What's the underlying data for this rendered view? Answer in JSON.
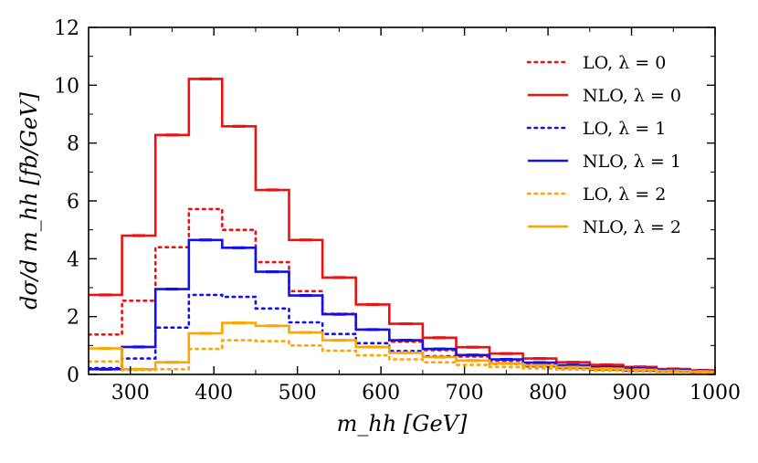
{
  "chart_data": {
    "type": "line",
    "step": true,
    "xlabel": "m_hh [GeV]",
    "ylabel": "dσ/d m_hh [fb/GeV]",
    "xlim": [
      250,
      1000
    ],
    "ylim": [
      0,
      12
    ],
    "xticks": [
      300,
      400,
      500,
      600,
      700,
      800,
      900,
      1000
    ],
    "yticks": [
      0,
      2,
      4,
      6,
      8,
      10,
      12
    ],
    "grid": false,
    "legend_position": "top-right",
    "bin_edges": [
      250,
      290,
      330,
      370,
      410,
      450,
      490,
      530,
      570,
      610,
      650,
      690,
      730,
      770,
      810,
      850,
      890,
      930,
      970,
      1000
    ],
    "series": [
      {
        "name": "LO, λ = 0",
        "color": "#ee1111",
        "style": "dotted",
        "values": [
          1.38,
          2.55,
          4.4,
          5.72,
          5.0,
          3.88,
          2.88,
          2.1,
          1.55,
          1.13,
          0.84,
          0.62,
          0.47,
          0.35,
          0.27,
          0.21,
          0.16,
          0.12,
          0.09
        ]
      },
      {
        "name": "NLO, λ = 0",
        "color": "#ee1111",
        "style": "solid",
        "values": [
          2.75,
          4.8,
          8.28,
          10.22,
          8.58,
          6.38,
          4.65,
          3.35,
          2.42,
          1.75,
          1.27,
          0.94,
          0.72,
          0.55,
          0.42,
          0.33,
          0.26,
          0.19,
          0.14
        ]
      },
      {
        "name": "LO, λ = 1",
        "color": "#1111ee",
        "style": "dotted",
        "values": [
          0.22,
          0.55,
          1.62,
          2.75,
          2.68,
          2.28,
          1.8,
          1.4,
          1.08,
          0.81,
          0.63,
          0.48,
          0.37,
          0.28,
          0.22,
          0.17,
          0.13,
          0.1,
          0.08
        ]
      },
      {
        "name": "NLO, λ = 1",
        "color": "#1111ee",
        "style": "solid",
        "values": [
          0.18,
          0.95,
          2.95,
          4.65,
          4.38,
          3.55,
          2.73,
          2.08,
          1.55,
          1.18,
          0.88,
          0.67,
          0.52,
          0.41,
          0.32,
          0.25,
          0.2,
          0.15,
          0.12
        ]
      },
      {
        "name": "LO, λ = 2",
        "color": "#ffa500",
        "style": "dotted",
        "values": [
          0.45,
          0.15,
          0.18,
          0.88,
          1.18,
          1.15,
          1.0,
          0.82,
          0.66,
          0.52,
          0.42,
          0.33,
          0.26,
          0.21,
          0.17,
          0.13,
          0.1,
          0.08,
          0.06
        ]
      },
      {
        "name": "NLO, λ = 2",
        "color": "#ffa500",
        "style": "solid",
        "values": [
          0.9,
          0.18,
          0.42,
          1.42,
          1.78,
          1.68,
          1.45,
          1.18,
          0.95,
          0.75,
          0.6,
          0.48,
          0.38,
          0.31,
          0.25,
          0.2,
          0.16,
          0.12,
          0.1
        ]
      }
    ]
  }
}
